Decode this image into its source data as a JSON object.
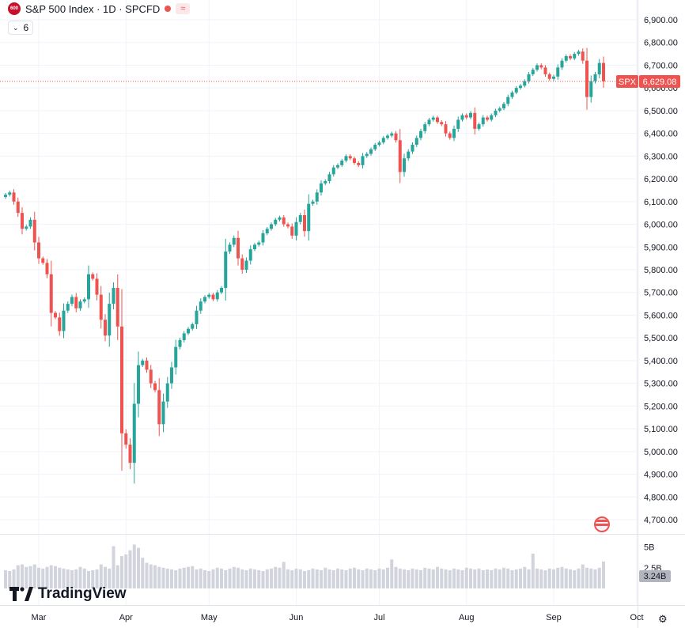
{
  "header": {
    "badge_text": "600",
    "title": "S&P 500 Index · 1D · SPCFD",
    "indicators_count": "6",
    "wave_glyph": "≈"
  },
  "branding": {
    "logo_text": "TradingView"
  },
  "colors": {
    "up": "#26a69a",
    "down": "#ef5350",
    "grid": "#f0f3fa",
    "axis_text": "#131722",
    "volume": "#d1d4dc"
  },
  "price_label": {
    "symbol": "SPX",
    "value": "6,629.08",
    "price": 6629.08
  },
  "volume_label": {
    "value": "3.24B",
    "value_num": 3.24
  },
  "chart_data": {
    "type": "candlestick",
    "title": "S&P 500 Index · 1D · SPCFD",
    "ylim": [
      4650,
      7000
    ],
    "y_ticks": [
      4700,
      4800,
      4900,
      5000,
      5100,
      5200,
      5300,
      5400,
      5500,
      5600,
      5700,
      5800,
      5900,
      6000,
      6100,
      6200,
      6300,
      6400,
      6500,
      6600,
      6700,
      6800,
      6900
    ],
    "y_tick_labels": [
      "4,700.00",
      "4,800.00",
      "4,900.00",
      "5,000.00",
      "5,100.00",
      "5,200.00",
      "5,300.00",
      "5,400.00",
      "5,500.00",
      "5,600.00",
      "5,700.00",
      "5,800.00",
      "5,900.00",
      "6,000.00",
      "6,100.00",
      "6,200.00",
      "6,300.00",
      "6,400.00",
      "6,500.00",
      "6,600.00",
      "6,700.00",
      "6,800.00",
      "6,900.00"
    ],
    "volume_ylim": [
      0,
      6.2
    ],
    "volume_ticks": [
      2.5,
      5
    ],
    "volume_tick_labels": [
      "2.5B",
      "5B"
    ],
    "x_labels": [
      {
        "label": "Mar",
        "index": 8
      },
      {
        "label": "Apr",
        "index": 29
      },
      {
        "label": "May",
        "index": 49
      },
      {
        "label": "Jun",
        "index": 70
      },
      {
        "label": "Jul",
        "index": 90
      },
      {
        "label": "Aug",
        "index": 111
      },
      {
        "label": "Sep",
        "index": 132
      },
      {
        "label": "Oct",
        "index": 152
      }
    ],
    "closes": [
      6130,
      6140,
      6100,
      6050,
      5980,
      5990,
      6020,
      5920,
      5850,
      5830,
      5780,
      5610,
      5590,
      5530,
      5620,
      5650,
      5680,
      5630,
      5660,
      5670,
      5780,
      5760,
      5690,
      5580,
      5510,
      5650,
      5720,
      5550,
      5080,
      5030,
      4950,
      5210,
      5380,
      5400,
      5360,
      5300,
      5270,
      5120,
      5220,
      5300,
      5370,
      5460,
      5490,
      5520,
      5540,
      5560,
      5620,
      5660,
      5680,
      5690,
      5670,
      5700,
      5720,
      5880,
      5910,
      5940,
      5850,
      5800,
      5840,
      5890,
      5910,
      5920,
      5960,
      5980,
      6000,
      6020,
      6030,
      6000,
      5990,
      5950,
      6010,
      6040,
      5970,
      6090,
      6100,
      6140,
      6180,
      6190,
      6220,
      6250,
      6260,
      6280,
      6300,
      6290,
      6270,
      6260,
      6300,
      6310,
      6330,
      6350,
      6360,
      6380,
      6390,
      6400,
      6370,
      6230,
      6290,
      6320,
      6350,
      6380,
      6410,
      6440,
      6460,
      6470,
      6450,
      6440,
      6400,
      6380,
      6420,
      6460,
      6480,
      6470,
      6490,
      6420,
      6440,
      6470,
      6460,
      6480,
      6500,
      6510,
      6530,
      6560,
      6580,
      6600,
      6610,
      6630,
      6660,
      6680,
      6700,
      6690,
      6660,
      6640,
      6650,
      6690,
      6720,
      6740,
      6730,
      6750,
      6760,
      6720,
      6560,
      6630,
      6660,
      6710,
      6629.08
    ],
    "volumes": [
      2.2,
      2.1,
      2.3,
      2.8,
      2.9,
      2.6,
      2.7,
      2.9,
      2.5,
      2.4,
      2.6,
      2.8,
      2.7,
      2.5,
      2.4,
      2.3,
      2.2,
      2.3,
      2.6,
      2.4,
      2.1,
      2.2,
      2.3,
      2.9,
      2.6,
      2.4,
      5.1,
      2.8,
      3.9,
      4.1,
      4.6,
      5.3,
      4.9,
      3.7,
      3.1,
      2.9,
      2.8,
      2.6,
      2.5,
      2.4,
      2.3,
      2.2,
      2.4,
      2.5,
      2.6,
      2.7,
      2.3,
      2.4,
      2.2,
      2.1,
      2.3,
      2.5,
      2.4,
      2.2,
      2.4,
      2.6,
      2.5,
      2.3,
      2.2,
      2.4,
      2.3,
      2.2,
      2.1,
      2.3,
      2.4,
      2.6,
      2.5,
      3.2,
      2.3,
      2.2,
      2.4,
      2.3,
      2.1,
      2.2,
      2.4,
      2.3,
      2.2,
      2.5,
      2.3,
      2.2,
      2.4,
      2.3,
      2.2,
      2.4,
      2.5,
      2.3,
      2.2,
      2.4,
      2.3,
      2.2,
      2.4,
      2.3,
      2.5,
      3.5,
      2.6,
      2.4,
      2.3,
      2.2,
      2.4,
      2.3,
      2.2,
      2.5,
      2.4,
      2.3,
      2.6,
      2.4,
      2.3,
      2.2,
      2.4,
      2.3,
      2.2,
      2.5,
      2.4,
      2.3,
      2.4,
      2.2,
      2.3,
      2.2,
      2.4,
      2.3,
      2.5,
      2.4,
      2.2,
      2.3,
      2.4,
      2.6,
      2.3,
      4.2,
      2.4,
      2.3,
      2.2,
      2.4,
      2.3,
      2.5,
      2.6,
      2.4,
      2.3,
      2.2,
      2.4,
      2.9,
      2.5,
      2.4,
      2.3,
      2.5,
      3.24
    ]
  }
}
